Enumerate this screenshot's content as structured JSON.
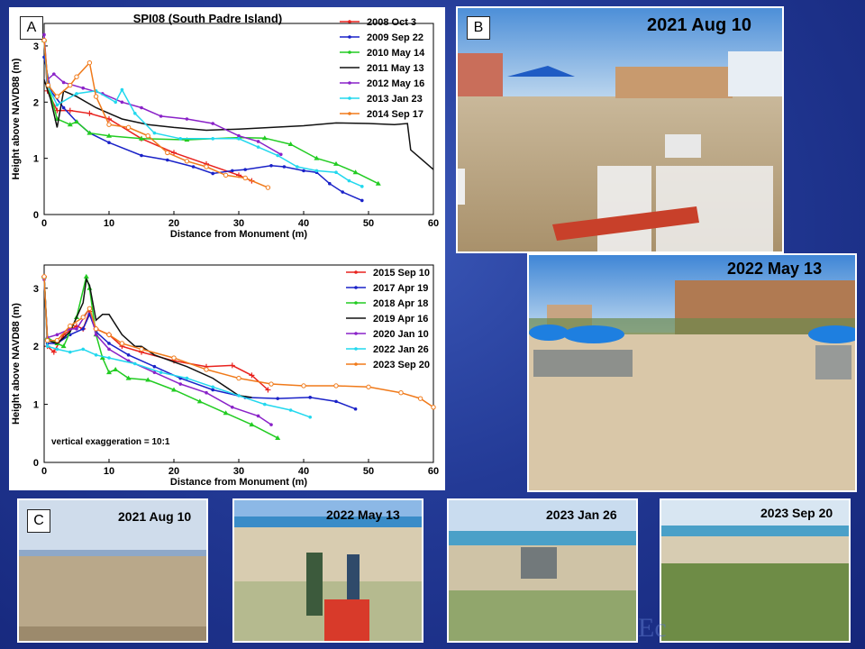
{
  "panel_letters": {
    "a": "A",
    "b": "B",
    "c": "C"
  },
  "photos": {
    "b_top": "2021 Aug 10",
    "b_bottom": "2022 May 13",
    "c1": "2021 Aug 10",
    "c2": "2022 May 13",
    "c3": "2023 Jan 26",
    "c4": "2023 Sep 20"
  },
  "watermark": "Ec",
  "chart_data": [
    {
      "type": "line",
      "title": "SPI08 (South Padre Island)",
      "xlabel": "Distance from Monument (m)",
      "ylabel": "Height above NAVD88 (m)",
      "xlim": [
        0,
        60
      ],
      "ylim": [
        0,
        3.4
      ],
      "xticks": [
        0,
        10,
        20,
        30,
        40,
        50,
        60
      ],
      "yticks": [
        0,
        1,
        2,
        3
      ],
      "legend_position": "top-right",
      "series": [
        {
          "name": "2008 Oct 3",
          "color": "#e8221e",
          "marker": "plus",
          "points": [
            [
              0,
              3.1
            ],
            [
              0.5,
              2.2
            ],
            [
              2,
              1.85
            ],
            [
              4,
              1.85
            ],
            [
              7,
              1.8
            ],
            [
              10,
              1.7
            ],
            [
              15,
              1.35
            ],
            [
              20,
              1.1
            ],
            [
              25,
              0.9
            ],
            [
              30,
              0.7
            ],
            [
              32,
              0.6
            ]
          ]
        },
        {
          "name": "2009 Sep 22",
          "color": "#1a22c8",
          "marker": "dot",
          "points": [
            [
              0,
              2.8
            ],
            [
              1,
              2.2
            ],
            [
              3,
              1.9
            ],
            [
              5,
              1.65
            ],
            [
              7,
              1.45
            ],
            [
              10,
              1.28
            ],
            [
              15,
              1.05
            ],
            [
              19,
              0.97
            ],
            [
              23,
              0.85
            ],
            [
              26,
              0.73
            ],
            [
              29,
              0.78
            ],
            [
              31,
              0.8
            ],
            [
              35,
              0.87
            ],
            [
              37,
              0.85
            ],
            [
              40,
              0.78
            ],
            [
              42,
              0.75
            ],
            [
              44,
              0.55
            ],
            [
              46,
              0.4
            ],
            [
              49,
              0.25
            ]
          ]
        },
        {
          "name": "2010 May 14",
          "color": "#22cc22",
          "marker": "tri",
          "points": [
            [
              0,
              3.1
            ],
            [
              0.6,
              2.3
            ],
            [
              2,
              1.7
            ],
            [
              4,
              1.6
            ],
            [
              5,
              1.65
            ],
            [
              7,
              1.45
            ],
            [
              10,
              1.4
            ],
            [
              15,
              1.35
            ],
            [
              22,
              1.33
            ],
            [
              30,
              1.37
            ],
            [
              34,
              1.36
            ],
            [
              38,
              1.25
            ],
            [
              42,
              1.0
            ],
            [
              45,
              0.9
            ],
            [
              48,
              0.75
            ],
            [
              51.5,
              0.55
            ]
          ]
        },
        {
          "name": "2011 May 13",
          "color": "#111111",
          "marker": "none",
          "points": [
            [
              0,
              2.4
            ],
            [
              1,
              2.05
            ],
            [
              2,
              1.55
            ],
            [
              3,
              2.2
            ],
            [
              5,
              2.1
            ],
            [
              8,
              1.9
            ],
            [
              12,
              1.7
            ],
            [
              16,
              1.6
            ],
            [
              20,
              1.55
            ],
            [
              25,
              1.5
            ],
            [
              30,
              1.52
            ],
            [
              35,
              1.55
            ],
            [
              40,
              1.58
            ],
            [
              45,
              1.63
            ],
            [
              50,
              1.62
            ],
            [
              54,
              1.6
            ],
            [
              56,
              1.62
            ],
            [
              56.5,
              1.15
            ],
            [
              58,
              1.0
            ],
            [
              60,
              0.8
            ]
          ]
        },
        {
          "name": "2012 May 16",
          "color": "#8a22c8",
          "marker": "dot",
          "points": [
            [
              0,
              3.2
            ],
            [
              0.5,
              2.4
            ],
            [
              1.5,
              2.5
            ],
            [
              3,
              2.35
            ],
            [
              6,
              2.25
            ],
            [
              9,
              2.15
            ],
            [
              12,
              2.0
            ],
            [
              15,
              1.9
            ],
            [
              18,
              1.75
            ],
            [
              22,
              1.7
            ],
            [
              26,
              1.62
            ],
            [
              30,
              1.4
            ],
            [
              33,
              1.3
            ],
            [
              36.5,
              1.07
            ]
          ]
        },
        {
          "name": "2013 Jan 23",
          "color": "#22d8ee",
          "marker": "dot",
          "points": [
            [
              0,
              3.1
            ],
            [
              0.5,
              2.3
            ],
            [
              2,
              1.95
            ],
            [
              5,
              2.15
            ],
            [
              8,
              2.2
            ],
            [
              11,
              2.0
            ],
            [
              12,
              2.22
            ],
            [
              14,
              1.8
            ],
            [
              17,
              1.45
            ],
            [
              21,
              1.35
            ],
            [
              26,
              1.35
            ],
            [
              30,
              1.35
            ],
            [
              33,
              1.2
            ],
            [
              36,
              1.05
            ],
            [
              39,
              0.85
            ],
            [
              42,
              0.78
            ],
            [
              45,
              0.75
            ],
            [
              47,
              0.6
            ],
            [
              49,
              0.5
            ]
          ]
        },
        {
          "name": "2014 Sep 17",
          "color": "#f07a1a",
          "marker": "circle",
          "points": [
            [
              0,
              3.1
            ],
            [
              0.6,
              2.3
            ],
            [
              2,
              2.1
            ],
            [
              4,
              2.3
            ],
            [
              5,
              2.45
            ],
            [
              7,
              2.7
            ],
            [
              8,
              2.1
            ],
            [
              10,
              1.6
            ],
            [
              13,
              1.55
            ],
            [
              16,
              1.4
            ],
            [
              19,
              1.1
            ],
            [
              22,
              0.95
            ],
            [
              25,
              0.85
            ],
            [
              28,
              0.7
            ],
            [
              31,
              0.65
            ],
            [
              34.5,
              0.48
            ]
          ]
        }
      ]
    },
    {
      "type": "line",
      "xlabel": "Distance from Monument (m)",
      "ylabel": "Height above NAVD88 (m)",
      "xlim": [
        0,
        60
      ],
      "ylim": [
        0,
        3.4
      ],
      "xticks": [
        0,
        10,
        20,
        30,
        40,
        50,
        60
      ],
      "yticks": [
        0,
        1,
        2,
        3
      ],
      "legend_position": "top-right",
      "annotation": "vertical exaggeration = 10:1",
      "series": [
        {
          "name": "2015 Sep 10",
          "color": "#e8221e",
          "marker": "plus",
          "points": [
            [
              0,
              3.2
            ],
            [
              0.5,
              2.0
            ],
            [
              1.5,
              1.9
            ],
            [
              3,
              2.2
            ],
            [
              5,
              2.35
            ],
            [
              6,
              2.3
            ],
            [
              7,
              2.6
            ],
            [
              8,
              2.3
            ],
            [
              10,
              2.2
            ],
            [
              12,
              2.0
            ],
            [
              15,
              1.9
            ],
            [
              20,
              1.75
            ],
            [
              25,
              1.65
            ],
            [
              29,
              1.67
            ],
            [
              32,
              1.5
            ],
            [
              34.5,
              1.25
            ]
          ]
        },
        {
          "name": "2017 Apr 19",
          "color": "#1a22c8",
          "marker": "dot",
          "points": [
            [
              0,
              3.2
            ],
            [
              0.5,
              2.05
            ],
            [
              2,
              2.05
            ],
            [
              4,
              2.2
            ],
            [
              6,
              2.3
            ],
            [
              7,
              2.55
            ],
            [
              8,
              2.25
            ],
            [
              10,
              2.05
            ],
            [
              13,
              1.85
            ],
            [
              17,
              1.65
            ],
            [
              21,
              1.45
            ],
            [
              26,
              1.25
            ],
            [
              31,
              1.12
            ],
            [
              36,
              1.1
            ],
            [
              41,
              1.12
            ],
            [
              45,
              1.05
            ],
            [
              48,
              0.92
            ]
          ]
        },
        {
          "name": "2018 Apr 18",
          "color": "#22cc22",
          "marker": "tri",
          "points": [
            [
              0,
              3.2
            ],
            [
              0.5,
              2.15
            ],
            [
              2,
              2.05
            ],
            [
              3,
              2.0
            ],
            [
              5,
              2.5
            ],
            [
              6.5,
              3.2
            ],
            [
              7,
              3.0
            ],
            [
              8,
              2.2
            ],
            [
              9,
              1.8
            ],
            [
              10,
              1.55
            ],
            [
              11,
              1.6
            ],
            [
              13,
              1.45
            ],
            [
              16,
              1.42
            ],
            [
              20,
              1.25
            ],
            [
              24,
              1.05
            ],
            [
              28,
              0.85
            ],
            [
              32,
              0.65
            ],
            [
              36,
              0.42
            ]
          ]
        },
        {
          "name": "2019 Apr 16",
          "color": "#111111",
          "marker": "none",
          "points": [
            [
              0,
              3.2
            ],
            [
              0.5,
              2.1
            ],
            [
              2,
              2.05
            ],
            [
              4,
              2.25
            ],
            [
              6,
              2.75
            ],
            [
              6.5,
              3.15
            ],
            [
              7,
              3.05
            ],
            [
              8,
              2.45
            ],
            [
              9,
              2.55
            ],
            [
              10,
              2.55
            ],
            [
              12,
              2.2
            ],
            [
              14,
              2.0
            ],
            [
              15,
              2.0
            ],
            [
              17,
              1.85
            ],
            [
              22,
              1.65
            ],
            [
              26,
              1.45
            ],
            [
              30,
              1.15
            ],
            [
              32,
              1.12
            ]
          ]
        },
        {
          "name": "2020 Jan 10",
          "color": "#8a22c8",
          "marker": "dot",
          "points": [
            [
              0,
              3.15
            ],
            [
              0.5,
              2.15
            ],
            [
              2,
              2.2
            ],
            [
              4,
              2.3
            ],
            [
              5,
              2.3
            ],
            [
              7,
              2.65
            ],
            [
              8,
              2.2
            ],
            [
              10,
              1.95
            ],
            [
              13,
              1.75
            ],
            [
              17,
              1.55
            ],
            [
              21,
              1.35
            ],
            [
              25,
              1.2
            ],
            [
              29,
              0.95
            ],
            [
              33,
              0.8
            ],
            [
              35,
              0.65
            ]
          ]
        },
        {
          "name": "2022 Jan 26",
          "color": "#22d8ee",
          "marker": "dot",
          "points": [
            [
              0,
              3.2
            ],
            [
              0.5,
              2.0
            ],
            [
              2,
              1.95
            ],
            [
              4,
              1.9
            ],
            [
              6,
              1.95
            ],
            [
              8,
              1.85
            ],
            [
              10,
              1.8
            ],
            [
              14,
              1.7
            ],
            [
              18,
              1.55
            ],
            [
              22,
              1.45
            ],
            [
              26,
              1.3
            ],
            [
              30,
              1.15
            ],
            [
              34,
              1.0
            ],
            [
              38,
              0.9
            ],
            [
              41,
              0.78
            ]
          ]
        },
        {
          "name": "2023 Sep 20",
          "color": "#f07a1a",
          "marker": "circle",
          "points": [
            [
              0,
              3.2
            ],
            [
              0.5,
              2.1
            ],
            [
              2,
              2.1
            ],
            [
              4,
              2.35
            ],
            [
              6,
              2.5
            ],
            [
              7,
              2.65
            ],
            [
              8,
              2.3
            ],
            [
              10,
              2.2
            ],
            [
              12,
              2.05
            ],
            [
              15,
              1.95
            ],
            [
              20,
              1.8
            ],
            [
              25,
              1.6
            ],
            [
              30,
              1.45
            ],
            [
              35,
              1.35
            ],
            [
              40,
              1.32
            ],
            [
              45,
              1.32
            ],
            [
              50,
              1.3
            ],
            [
              55,
              1.2
            ],
            [
              58,
              1.1
            ],
            [
              60,
              0.95
            ]
          ]
        }
      ]
    }
  ]
}
